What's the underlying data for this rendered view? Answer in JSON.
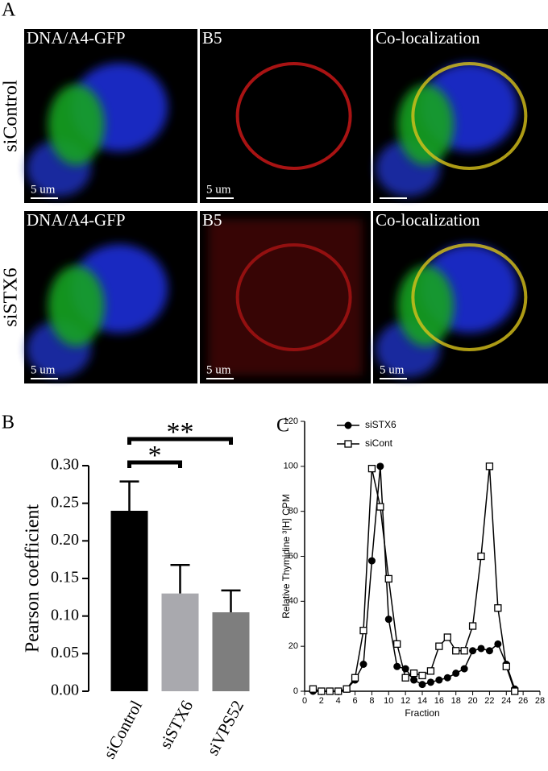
{
  "panel_a": {
    "label": "A",
    "rows": [
      {
        "name": "siControl",
        "images": [
          {
            "title": "DNA/A4-GFP",
            "scale": "5 um"
          },
          {
            "title": "B5",
            "scale": "5 um"
          },
          {
            "title": "Co-localization"
          }
        ]
      },
      {
        "name": "siSTX6",
        "images": [
          {
            "title": "DNA/A4-GFP",
            "scale": "5 um"
          },
          {
            "title": "B5",
            "scale": "5 um"
          },
          {
            "title": "Co-localization",
            "scale": "5 um"
          }
        ]
      }
    ]
  },
  "chart_data": [
    {
      "type": "bar",
      "panel": "B",
      "y_label": "Pearson coefficient",
      "categories": [
        "siControl",
        "siSTX6",
        "siVPS52"
      ],
      "values": [
        0.24,
        0.13,
        0.105
      ],
      "errors": [
        0.039,
        0.038,
        0.029
      ],
      "colors": [
        "#000000",
        "#a9a9ae",
        "#7e7e7e"
      ],
      "ylim": [
        0,
        0.3
      ],
      "yticks": [
        {
          "value": 0,
          "label": "0.00"
        },
        {
          "value": 0.05,
          "label": "0.05"
        },
        {
          "value": 0.1,
          "label": "0.10"
        },
        {
          "value": 0.15,
          "label": "0.15"
        },
        {
          "value": 0.2,
          "label": "0.20"
        },
        {
          "value": 0.25,
          "label": "0.25"
        },
        {
          "value": 0.3,
          "label": "0.30"
        }
      ],
      "annotations": [
        "*",
        "**"
      ]
    },
    {
      "type": "line",
      "panel": "C",
      "x_label": "Fraction",
      "y_label": "Relative Thymidine ³[H] CPM",
      "x": [
        1,
        2,
        3,
        4,
        5,
        6,
        7,
        8,
        9,
        10,
        11,
        12,
        13,
        14,
        15,
        16,
        17,
        18,
        19,
        20,
        21,
        22,
        23,
        24,
        25
      ],
      "series": [
        {
          "name": "siSTX6",
          "color": "#000000",
          "marker": "circle",
          "values": [
            0,
            0,
            0,
            0,
            1,
            5,
            12,
            58,
            100,
            32,
            11,
            10,
            5,
            3,
            4,
            5,
            6,
            8,
            10,
            18,
            19,
            18,
            21,
            12,
            1
          ]
        },
        {
          "name": "siCont",
          "color": "#000000",
          "marker": "square",
          "values": [
            1,
            0,
            0,
            0,
            1,
            6,
            27,
            99,
            82,
            50,
            21,
            6,
            8,
            7,
            9,
            20,
            24,
            18,
            18,
            29,
            60,
            100,
            37,
            11,
            0
          ]
        }
      ],
      "xlim": [
        0,
        28
      ],
      "xticks": [
        0,
        2,
        4,
        6,
        8,
        10,
        12,
        14,
        16,
        18,
        20,
        22,
        24,
        26,
        28
      ],
      "ylim": [
        0,
        120
      ],
      "yticks": [
        0,
        20,
        40,
        60,
        80,
        100,
        120
      ]
    }
  ]
}
